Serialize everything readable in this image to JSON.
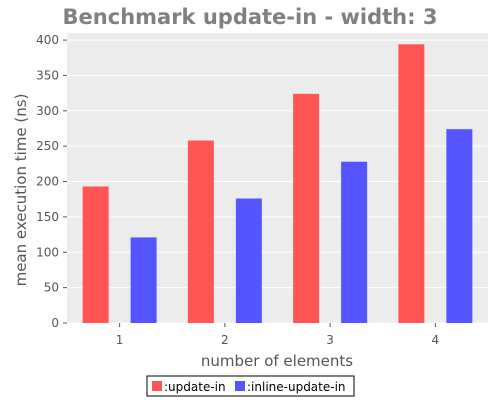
{
  "chart_data": {
    "type": "bar",
    "title": "Benchmark update-in - width: 3",
    "xlabel": "number of elements",
    "ylabel": "mean execution time (ns)",
    "categories": [
      "1",
      "2",
      "3",
      "4"
    ],
    "series": [
      {
        "name": ":update-in",
        "color": "#ff5555",
        "values": [
          193,
          258,
          324,
          394
        ]
      },
      {
        "name": ":inline-update-in",
        "color": "#5555ff",
        "values": [
          121,
          176,
          228,
          274
        ]
      }
    ],
    "ylim": [
      0,
      410
    ],
    "yticks": [
      0,
      50,
      100,
      150,
      200,
      250,
      300,
      350,
      400
    ],
    "grid": true,
    "legend": "bottom"
  }
}
